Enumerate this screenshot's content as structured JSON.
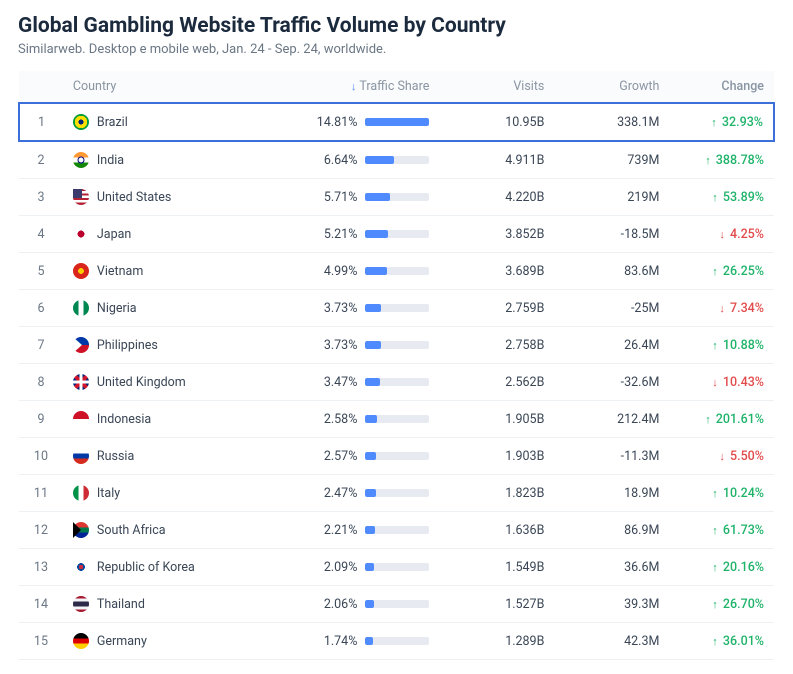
{
  "title": "Global Gambling Website Traffic Volume by Country",
  "subtitle": "Similarweb. Desktop e mobile web, Jan. 24 - Sep. 24, worldwide.",
  "columns": {
    "rank": "",
    "country": "Country",
    "traffic_share": "Traffic Share",
    "visits": "Visits",
    "growth": "Growth",
    "change": "Change"
  },
  "sorted_by": "traffic_share",
  "colors": {
    "bar_fill": "#4f8bff",
    "bar_track": "#e7ebf1",
    "up": "#1fb36a",
    "down": "#e24b4b",
    "highlight_border": "#3d6fdb",
    "text": "#3a4656",
    "muted": "#8a95a3"
  },
  "bar_max_percent": 14.81,
  "rows": [
    {
      "rank": 1,
      "country": "Brazil",
      "flag": "flag-br",
      "share": "14.81%",
      "share_val": 14.81,
      "visits": "10.95B",
      "growth": "338.1M",
      "change": "32.93%",
      "dir": "up",
      "highlight": true
    },
    {
      "rank": 2,
      "country": "India",
      "flag": "flag-in",
      "share": "6.64%",
      "share_val": 6.64,
      "visits": "4.911B",
      "growth": "739M",
      "change": "388.78%",
      "dir": "up"
    },
    {
      "rank": 3,
      "country": "United States",
      "flag": "flag-us",
      "share": "5.71%",
      "share_val": 5.71,
      "visits": "4.220B",
      "growth": "219M",
      "change": "53.89%",
      "dir": "up"
    },
    {
      "rank": 4,
      "country": "Japan",
      "flag": "flag-jp",
      "share": "5.21%",
      "share_val": 5.21,
      "visits": "3.852B",
      "growth": "-18.5M",
      "change": "4.25%",
      "dir": "down"
    },
    {
      "rank": 5,
      "country": "Vietnam",
      "flag": "flag-vn",
      "share": "4.99%",
      "share_val": 4.99,
      "visits": "3.689B",
      "growth": "83.6M",
      "change": "26.25%",
      "dir": "up"
    },
    {
      "rank": 6,
      "country": "Nigeria",
      "flag": "flag-ng",
      "share": "3.73%",
      "share_val": 3.73,
      "visits": "2.759B",
      "growth": "-25M",
      "change": "7.34%",
      "dir": "down"
    },
    {
      "rank": 7,
      "country": "Philippines",
      "flag": "flag-ph",
      "share": "3.73%",
      "share_val": 3.73,
      "visits": "2.758B",
      "growth": "26.4M",
      "change": "10.88%",
      "dir": "up"
    },
    {
      "rank": 8,
      "country": "United Kingdom",
      "flag": "flag-gb",
      "share": "3.47%",
      "share_val": 3.47,
      "visits": "2.562B",
      "growth": "-32.6M",
      "change": "10.43%",
      "dir": "down"
    },
    {
      "rank": 9,
      "country": "Indonesia",
      "flag": "flag-id",
      "share": "2.58%",
      "share_val": 2.58,
      "visits": "1.905B",
      "growth": "212.4M",
      "change": "201.61%",
      "dir": "up"
    },
    {
      "rank": 10,
      "country": "Russia",
      "flag": "flag-ru",
      "share": "2.57%",
      "share_val": 2.57,
      "visits": "1.903B",
      "growth": "-11.3M",
      "change": "5.50%",
      "dir": "down"
    },
    {
      "rank": 11,
      "country": "Italy",
      "flag": "flag-it",
      "share": "2.47%",
      "share_val": 2.47,
      "visits": "1.823B",
      "growth": "18.9M",
      "change": "10.24%",
      "dir": "up"
    },
    {
      "rank": 12,
      "country": "South Africa",
      "flag": "flag-za",
      "share": "2.21%",
      "share_val": 2.21,
      "visits": "1.636B",
      "growth": "86.9M",
      "change": "61.73%",
      "dir": "up"
    },
    {
      "rank": 13,
      "country": "Republic of Korea",
      "flag": "flag-kr",
      "share": "2.09%",
      "share_val": 2.09,
      "visits": "1.549B",
      "growth": "36.6M",
      "change": "20.16%",
      "dir": "up"
    },
    {
      "rank": 14,
      "country": "Thailand",
      "flag": "flag-th",
      "share": "2.06%",
      "share_val": 2.06,
      "visits": "1.527B",
      "growth": "39.3M",
      "change": "26.70%",
      "dir": "up"
    },
    {
      "rank": 15,
      "country": "Germany",
      "flag": "flag-de",
      "share": "1.74%",
      "share_val": 1.74,
      "visits": "1.289B",
      "growth": "42.3M",
      "change": "36.01%",
      "dir": "up"
    }
  ]
}
